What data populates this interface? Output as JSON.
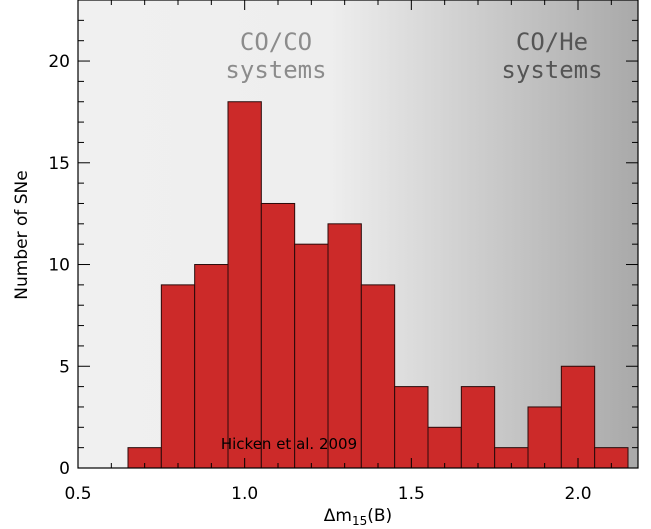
{
  "chart_data": {
    "type": "bar",
    "bin_edges": [
      0.65,
      0.75,
      0.85,
      0.95,
      1.05,
      1.15,
      1.25,
      1.35,
      1.45,
      1.55,
      1.65,
      1.75,
      1.85,
      1.95,
      2.05,
      2.15
    ],
    "values": [
      1,
      9,
      10,
      18,
      13,
      11,
      12,
      9,
      4,
      2,
      4,
      1,
      3,
      5,
      1
    ],
    "xlabel_main": "Δm",
    "xlabel_sub": "15",
    "xlabel_tail": "(B)",
    "ylabel": "Number of SNe",
    "xlim": [
      0.5,
      2.18
    ],
    "ylim": [
      0,
      23
    ],
    "x_ticks": [
      0.5,
      1.0,
      1.5,
      2.0
    ],
    "x_tick_labels": [
      "0.5",
      "1.0",
      "1.5",
      "2.0"
    ],
    "y_ticks": [
      0,
      5,
      10,
      15,
      20
    ],
    "y_tick_labels": [
      "0",
      "5",
      "10",
      "15",
      "20"
    ],
    "bar_color": "#cc2a29",
    "region_labels": {
      "co_co_line1": "CO/CO",
      "co_co_line2": "systems",
      "co_he_line1": "CO/He",
      "co_he_line2": "systems"
    },
    "annotation": "Hicken et al. 2009",
    "background_gradient": {
      "light": "#f0f0f0",
      "dark": "#a9a9a9"
    }
  }
}
